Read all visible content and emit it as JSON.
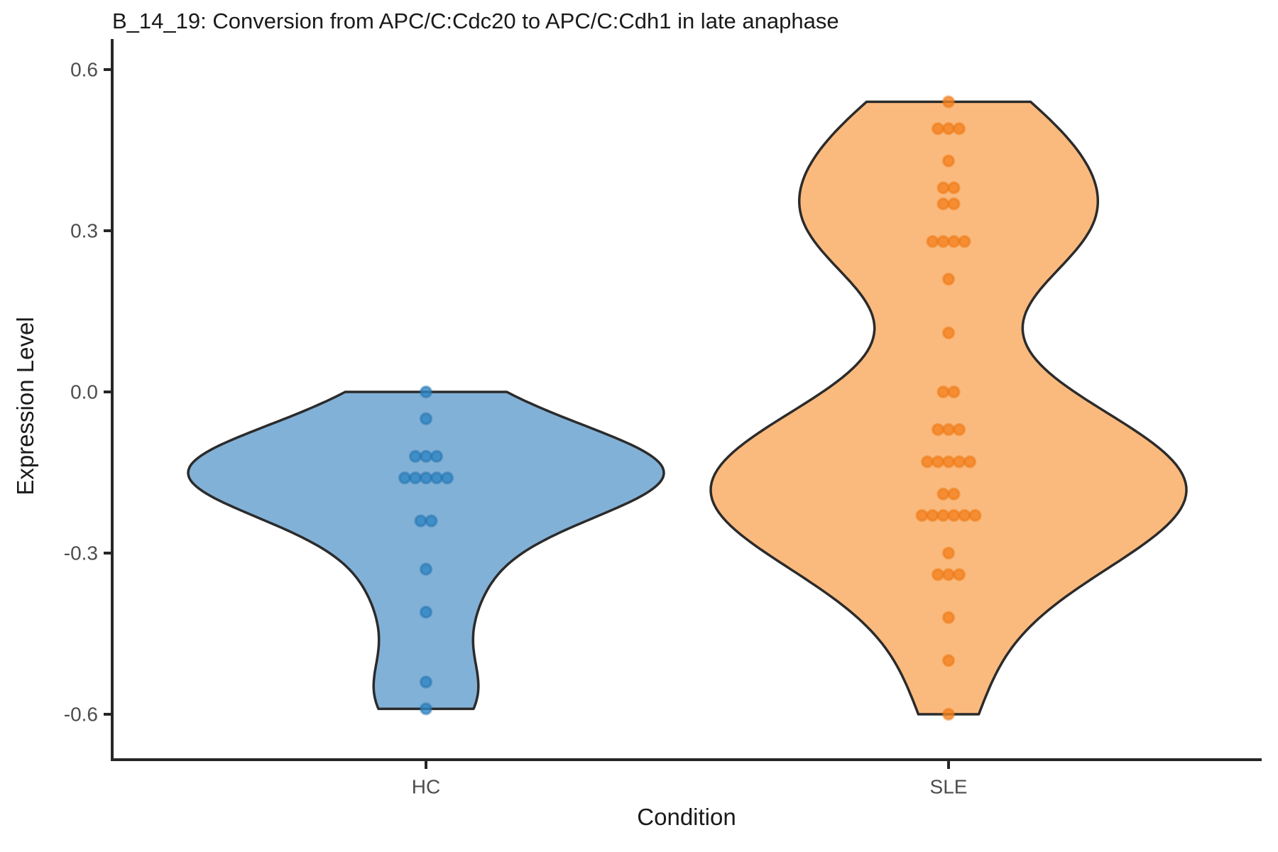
{
  "chart_data": {
    "type": "violin",
    "title": "B_14_19: Conversion from APC/C:Cdc20 to APC/C:Cdh1 in late anaphase",
    "xlabel": "Condition",
    "ylabel": "Expression Level",
    "categories": [
      "HC",
      "SLE"
    ],
    "yticks": [
      {
        "label": "0.6",
        "value": 0.6
      },
      {
        "label": "0.3",
        "value": 0.3
      },
      {
        "label": "0.0",
        "value": 0.0
      },
      {
        "label": "-0.3",
        "value": -0.3
      },
      {
        "label": "-0.6",
        "value": -0.6
      }
    ],
    "ylim": [
      -0.685,
      0.685
    ],
    "grid": false,
    "legend": "none",
    "series": [
      {
        "name": "HC",
        "fill": "#82B1D7",
        "outline": "#2B2B2B",
        "point_fill": "#2E86C4",
        "point_ring": "#1F6EAA",
        "bandwidth": 0.075,
        "values": [
          0.0,
          -0.05,
          -0.12,
          -0.12,
          -0.12,
          -0.16,
          -0.16,
          -0.16,
          -0.16,
          -0.16,
          -0.24,
          -0.24,
          -0.33,
          -0.41,
          -0.54,
          -0.59
        ]
      },
      {
        "name": "SLE",
        "fill": "#FBBA7D",
        "outline": "#2B2B2B",
        "point_fill": "#F58220",
        "point_ring": "#E8760F",
        "bandwidth": 0.1,
        "values": [
          0.54,
          0.49,
          0.49,
          0.49,
          0.43,
          0.38,
          0.38,
          0.35,
          0.35,
          0.28,
          0.28,
          0.28,
          0.28,
          0.21,
          0.11,
          0.0,
          0.0,
          -0.07,
          -0.07,
          -0.07,
          -0.13,
          -0.13,
          -0.13,
          -0.13,
          -0.13,
          -0.19,
          -0.19,
          -0.23,
          -0.23,
          -0.23,
          -0.23,
          -0.23,
          -0.23,
          -0.3,
          -0.34,
          -0.34,
          -0.34,
          -0.42,
          -0.5,
          -0.6
        ]
      }
    ],
    "style": {
      "axis_color": "#262626",
      "tick_text_color": "#4d4d4d",
      "title_color": "#1a1a1a"
    }
  }
}
